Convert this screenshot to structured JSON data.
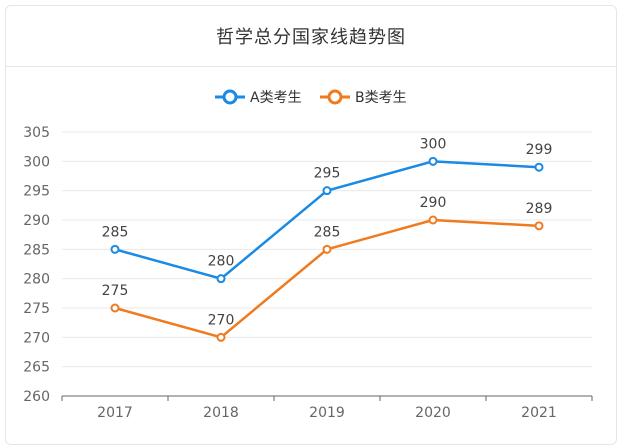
{
  "chart_data": {
    "type": "line",
    "title": "哲学总分国家线趋势图",
    "categories": [
      "2017",
      "2018",
      "2019",
      "2020",
      "2021"
    ],
    "series": [
      {
        "name": "A类考生",
        "color": "#1a8ae5",
        "values": [
          285,
          280,
          295,
          300,
          299
        ]
      },
      {
        "name": "B类考生",
        "color": "#f07a1e",
        "values": [
          275,
          270,
          285,
          290,
          289
        ]
      }
    ],
    "yticks": [
      260,
      265,
      270,
      275,
      280,
      285,
      290,
      295,
      300,
      305
    ],
    "ylim": [
      260,
      305
    ],
    "xlabel": "",
    "ylabel": "",
    "grid": true,
    "legend_position": "top-center"
  }
}
